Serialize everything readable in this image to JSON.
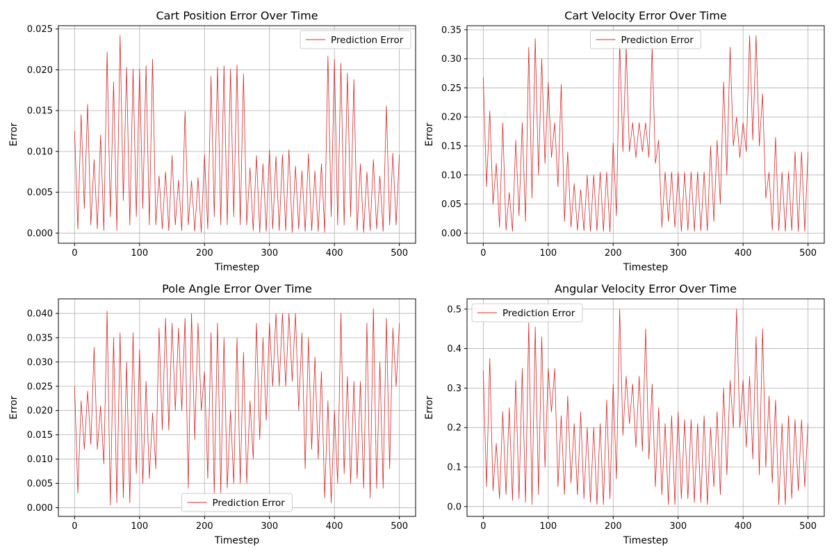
{
  "chart_data": [
    {
      "type": "line",
      "title": "Cart Position Error Over Time",
      "xlabel": "Timestep",
      "ylabel": "Error",
      "xlim": [
        -25,
        525
      ],
      "ylim": [
        -0.00125,
        0.0254
      ],
      "xticks": [
        0,
        100,
        200,
        300,
        400,
        500
      ],
      "xtick_labels": [
        "0",
        "100",
        "200",
        "300",
        "400",
        "500"
      ],
      "yticks": [
        0,
        0.005,
        0.01,
        0.015,
        0.02,
        0.025
      ],
      "ytick_labels": [
        "0.000",
        "0.005",
        "0.010",
        "0.015",
        "0.020",
        "0.025"
      ],
      "grid": true,
      "legend": "upper right",
      "series": [
        {
          "name": "Prediction Error",
          "color": "#d62728",
          "x": [
            0,
            5,
            10,
            15,
            20,
            25,
            30,
            35,
            40,
            45,
            50,
            55,
            60,
            65,
            70,
            75,
            80,
            85,
            90,
            95,
            100,
            105,
            110,
            115,
            120,
            125,
            130,
            135,
            140,
            145,
            150,
            155,
            160,
            165,
            170,
            175,
            180,
            185,
            190,
            195,
            200,
            205,
            210,
            215,
            220,
            225,
            230,
            235,
            240,
            245,
            250,
            255,
            260,
            265,
            270,
            275,
            280,
            285,
            290,
            295,
            300,
            305,
            310,
            315,
            320,
            325,
            330,
            335,
            340,
            345,
            350,
            355,
            360,
            365,
            370,
            375,
            380,
            385,
            390,
            395,
            400,
            405,
            410,
            415,
            420,
            425,
            430,
            435,
            440,
            445,
            450,
            455,
            460,
            465,
            470,
            475,
            480,
            485,
            490,
            495,
            500
          ],
          "y": [
            0.0125,
            0.0005,
            0.0145,
            0.003,
            0.0158,
            0.001,
            0.009,
            0.0005,
            0.012,
            0.0003,
            0.0222,
            0.002,
            0.0185,
            0.0003,
            0.0242,
            0.004,
            0.0203,
            0.001,
            0.0201,
            0.002,
            0.0201,
            0.003,
            0.0205,
            0.001,
            0.0213,
            0.001,
            0.007,
            0.0005,
            0.0075,
            0.0003,
            0.0095,
            0.001,
            0.0065,
            0.0003,
            0.0149,
            0.001,
            0.0064,
            0.0002,
            0.0068,
            0.0001,
            0.0096,
            0.0005,
            0.0192,
            0.002,
            0.0203,
            0.001,
            0.0205,
            0.001,
            0.0201,
            0.002,
            0.0206,
            0.001,
            0.0195,
            0.001,
            0.008,
            0.0003,
            0.0095,
            0.0001,
            0.0085,
            0.0002,
            0.0102,
            0.0005,
            0.0094,
            0.0003,
            0.0096,
            0.0003,
            0.0102,
            0.0001,
            0.0082,
            0.0005,
            0.0076,
            0.0002,
            0.0097,
            0.0003,
            0.0076,
            0.0002,
            0.0085,
            0.0001,
            0.0217,
            0.002,
            0.0213,
            0.001,
            0.0208,
            0.001,
            0.0196,
            0.002,
            0.0188,
            0.0003,
            0.0085,
            0.0001,
            0.0075,
            0.0003,
            0.009,
            0.0005,
            0.007,
            0.0002,
            0.0156,
            0.001,
            0.0098,
            0.001,
            0.0096
          ]
        }
      ]
    },
    {
      "type": "line",
      "title": "Cart Velocity Error Over Time",
      "xlabel": "Timestep",
      "ylabel": "Error",
      "xlim": [
        -25,
        525
      ],
      "ylim": [
        -0.0175,
        0.357
      ],
      "xticks": [
        0,
        100,
        200,
        300,
        400,
        500
      ],
      "xtick_labels": [
        "0",
        "100",
        "200",
        "300",
        "400",
        "500"
      ],
      "yticks": [
        0,
        0.05,
        0.1,
        0.15,
        0.2,
        0.25,
        0.3,
        0.35
      ],
      "ytick_labels": [
        "0.00",
        "0.05",
        "0.10",
        "0.15",
        "0.20",
        "0.25",
        "0.30",
        "0.35"
      ],
      "grid": true,
      "legend": "upper center",
      "series": [
        {
          "name": "Prediction Error",
          "color": "#d62728",
          "x": [
            0,
            5,
            10,
            15,
            20,
            25,
            30,
            35,
            40,
            45,
            50,
            55,
            60,
            65,
            70,
            75,
            80,
            85,
            90,
            95,
            100,
            105,
            110,
            115,
            120,
            125,
            130,
            135,
            140,
            145,
            150,
            155,
            160,
            165,
            170,
            175,
            180,
            185,
            190,
            195,
            200,
            205,
            210,
            215,
            220,
            225,
            230,
            235,
            240,
            245,
            250,
            255,
            260,
            265,
            270,
            275,
            280,
            285,
            290,
            295,
            300,
            305,
            310,
            315,
            320,
            325,
            330,
            335,
            340,
            345,
            350,
            355,
            360,
            365,
            370,
            375,
            380,
            385,
            390,
            395,
            400,
            405,
            410,
            415,
            420,
            425,
            430,
            435,
            440,
            445,
            450,
            455,
            460,
            465,
            470,
            475,
            480,
            485,
            490,
            495,
            500
          ],
          "y": [
            0.268,
            0.08,
            0.21,
            0.05,
            0.12,
            0.01,
            0.19,
            0.005,
            0.07,
            0.003,
            0.16,
            0.03,
            0.19,
            0.02,
            0.32,
            0.06,
            0.335,
            0.1,
            0.3,
            0.12,
            0.26,
            0.13,
            0.19,
            0.08,
            0.256,
            0.02,
            0.14,
            0.01,
            0.085,
            0.005,
            0.075,
            0.004,
            0.1,
            0.003,
            0.1,
            0.004,
            0.105,
            0.003,
            0.105,
            0.002,
            0.155,
            0.03,
            0.33,
            0.14,
            0.32,
            0.14,
            0.19,
            0.13,
            0.19,
            0.14,
            0.19,
            0.13,
            0.32,
            0.12,
            0.16,
            0.01,
            0.105,
            0.02,
            0.105,
            0.01,
            0.105,
            0.003,
            0.105,
            0.005,
            0.105,
            0.003,
            0.105,
            0.004,
            0.105,
            0.004,
            0.15,
            0.02,
            0.16,
            0.05,
            0.26,
            0.1,
            0.32,
            0.15,
            0.2,
            0.13,
            0.19,
            0.14,
            0.34,
            0.16,
            0.34,
            0.15,
            0.24,
            0.06,
            0.105,
            0.005,
            0.165,
            0.004,
            0.105,
            0.003,
            0.105,
            0.004,
            0.14,
            0.003,
            0.14,
            0.003,
            0.14
          ]
        }
      ]
    },
    {
      "type": "line",
      "title": "Pole Angle Error Over Time",
      "xlabel": "Timestep",
      "ylabel": "Error",
      "xlim": [
        -25,
        525
      ],
      "ylim": [
        -0.0018,
        0.043
      ],
      "xticks": [
        0,
        100,
        200,
        300,
        400,
        500
      ],
      "xtick_labels": [
        "0",
        "100",
        "200",
        "300",
        "400",
        "500"
      ],
      "yticks": [
        0,
        0.005,
        0.01,
        0.015,
        0.02,
        0.025,
        0.03,
        0.035,
        0.04
      ],
      "ytick_labels": [
        "0.000",
        "0.005",
        "0.010",
        "0.015",
        "0.020",
        "0.025",
        "0.030",
        "0.035",
        "0.040"
      ],
      "grid": true,
      "legend": "lower center",
      "series": [
        {
          "name": "Prediction Error",
          "color": "#d62728",
          "x": [
            0,
            5,
            10,
            15,
            20,
            25,
            30,
            35,
            40,
            45,
            50,
            55,
            60,
            65,
            70,
            75,
            80,
            85,
            90,
            95,
            100,
            105,
            110,
            115,
            120,
            125,
            130,
            135,
            140,
            145,
            150,
            155,
            160,
            165,
            170,
            175,
            180,
            185,
            190,
            195,
            200,
            205,
            210,
            215,
            220,
            225,
            230,
            235,
            240,
            245,
            250,
            255,
            260,
            265,
            270,
            275,
            280,
            285,
            290,
            295,
            300,
            305,
            310,
            315,
            320,
            325,
            330,
            335,
            340,
            345,
            350,
            355,
            360,
            365,
            370,
            375,
            380,
            385,
            390,
            395,
            400,
            405,
            410,
            415,
            420,
            425,
            430,
            435,
            440,
            445,
            450,
            455,
            460,
            465,
            470,
            475,
            480,
            485,
            490,
            495,
            500
          ],
          "y": [
            0.025,
            0.003,
            0.022,
            0.012,
            0.024,
            0.013,
            0.033,
            0.012,
            0.021,
            0.009,
            0.0405,
            0.0005,
            0.035,
            0.001,
            0.036,
            0.002,
            0.03,
            0.001,
            0.036,
            0.007,
            0.0325,
            0.005,
            0.026,
            0.006,
            0.0195,
            0.008,
            0.037,
            0.016,
            0.039,
            0.016,
            0.038,
            0.02,
            0.037,
            0.02,
            0.039,
            0.004,
            0.04,
            0.014,
            0.038,
            0.02,
            0.028,
            0.006,
            0.036,
            0.003,
            0.038,
            0.003,
            0.035,
            0.004,
            0.02,
            0.005,
            0.035,
            0.005,
            0.032,
            0.005,
            0.022,
            0.01,
            0.038,
            0.014,
            0.035,
            0.018,
            0.038,
            0.025,
            0.04,
            0.025,
            0.04,
            0.025,
            0.04,
            0.026,
            0.04,
            0.02,
            0.036,
            0.008,
            0.035,
            0.012,
            0.031,
            0.01,
            0.028,
            0.002,
            0.022,
            0.001,
            0.02,
            0.005,
            0.04,
            0.007,
            0.027,
            0.005,
            0.026,
            0.006,
            0.026,
            0.004,
            0.038,
            0.002,
            0.041,
            0.004,
            0.03,
            0.004,
            0.039,
            0.008,
            0.037,
            0.025,
            0.038
          ]
        }
      ]
    },
    {
      "type": "line",
      "title": "Angular Velocity Error Over Time",
      "xlabel": "Timestep",
      "ylabel": "Error",
      "xlim": [
        -25,
        525
      ],
      "ylim": [
        -0.025,
        0.526
      ],
      "xticks": [
        0,
        100,
        200,
        300,
        400,
        500
      ],
      "xtick_labels": [
        "0",
        "100",
        "200",
        "300",
        "400",
        "500"
      ],
      "yticks": [
        0,
        0.1,
        0.2,
        0.3,
        0.4,
        0.5
      ],
      "ytick_labels": [
        "0.0",
        "0.1",
        "0.2",
        "0.3",
        "0.4",
        "0.5"
      ],
      "grid": true,
      "legend": "upper left",
      "series": [
        {
          "name": "Prediction Error",
          "color": "#d62728",
          "x": [
            0,
            5,
            10,
            15,
            20,
            25,
            30,
            35,
            40,
            45,
            50,
            55,
            60,
            65,
            70,
            75,
            80,
            85,
            90,
            95,
            100,
            105,
            110,
            115,
            120,
            125,
            130,
            135,
            140,
            145,
            150,
            155,
            160,
            165,
            170,
            175,
            180,
            185,
            190,
            195,
            200,
            205,
            210,
            215,
            220,
            225,
            230,
            235,
            240,
            245,
            250,
            255,
            260,
            265,
            270,
            275,
            280,
            285,
            290,
            295,
            300,
            305,
            310,
            315,
            320,
            325,
            330,
            335,
            340,
            345,
            350,
            355,
            360,
            365,
            370,
            375,
            380,
            385,
            390,
            395,
            400,
            405,
            410,
            415,
            420,
            425,
            430,
            435,
            440,
            445,
            450,
            455,
            460,
            465,
            470,
            475,
            480,
            485,
            490,
            495,
            500
          ],
          "y": [
            0.345,
            0.05,
            0.375,
            0.04,
            0.16,
            0.02,
            0.24,
            0.03,
            0.25,
            0.015,
            0.32,
            0.02,
            0.35,
            0.01,
            0.465,
            0.005,
            0.455,
            0.03,
            0.43,
            0.1,
            0.35,
            0.24,
            0.35,
            0.05,
            0.23,
            0.03,
            0.28,
            0.06,
            0.21,
            0.03,
            0.24,
            0.02,
            0.2,
            0.01,
            0.2,
            0.005,
            0.21,
            0.005,
            0.27,
            0.02,
            0.31,
            0.07,
            0.5,
            0.18,
            0.33,
            0.21,
            0.31,
            0.15,
            0.33,
            0.14,
            0.45,
            0.12,
            0.31,
            0.05,
            0.25,
            0.03,
            0.21,
            0.005,
            0.23,
            0.005,
            0.24,
            0.02,
            0.22,
            0.02,
            0.22,
            0.01,
            0.21,
            0.01,
            0.23,
            0.005,
            0.2,
            0.05,
            0.24,
            0.03,
            0.3,
            0.08,
            0.32,
            0.2,
            0.5,
            0.2,
            0.32,
            0.15,
            0.33,
            0.12,
            0.43,
            0.08,
            0.45,
            0.1,
            0.28,
            0.06,
            0.27,
            0.005,
            0.21,
            0.005,
            0.23,
            0.02,
            0.22,
            0.04,
            0.22,
            0.05,
            0.21
          ]
        }
      ]
    }
  ]
}
